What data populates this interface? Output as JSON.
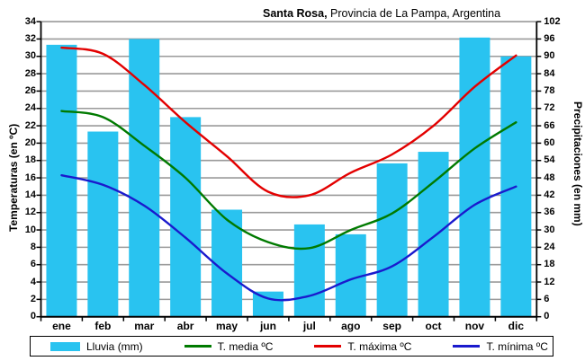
{
  "title": {
    "bold": "Santa Rosa,",
    "rest": " Provincia de La Pampa, Argentina"
  },
  "axes": {
    "left_label": "Temperaturas (en ºC)",
    "right_label": "Precipitaciones (en mm)",
    "left_ticks": [
      "34",
      "32",
      "30",
      "28",
      "26",
      "24",
      "22",
      "20",
      "18",
      "16",
      "14",
      "12",
      "10",
      "8",
      "6",
      "4",
      "2",
      "0"
    ],
    "right_ticks": [
      "102",
      "96",
      "90",
      "84",
      "78",
      "72",
      "66",
      "60",
      "54",
      "48",
      "42",
      "36",
      "30",
      "24",
      "18",
      "12",
      "6",
      "0"
    ]
  },
  "legend": [
    {
      "label": "Lluvia (mm)",
      "type": "bar",
      "color": "#29C3F0"
    },
    {
      "label": "T. media ºC",
      "type": "line",
      "color": "#007A00"
    },
    {
      "label": "T. máxima ºC",
      "type": "line",
      "color": "#E30000"
    },
    {
      "label": "T. mínima ºC",
      "type": "line",
      "color": "#1A1ACD"
    }
  ],
  "style": {
    "grid_color": "#9A9A9A",
    "axis_color": "#000000",
    "bar_color": "#29C3F0",
    "max_color": "#E30000",
    "media_color": "#007A00",
    "min_color": "#1A1ACD"
  },
  "chart_data": {
    "type": "bar+line",
    "title": "Santa Rosa, Provincia de La Pampa, Argentina",
    "categories": [
      "ene",
      "feb",
      "mar",
      "abr",
      "may",
      "jun",
      "jul",
      "ago",
      "sep",
      "oct",
      "nov",
      "dic"
    ],
    "ylabel_left": "Temperaturas (en ºC)",
    "ylabel_right": "Precipitaciones (en mm)",
    "ylim_left": [
      0,
      34
    ],
    "ylim_right": [
      0,
      102
    ],
    "grid": true,
    "legend_position": "bottom",
    "series": [
      {
        "name": "Lluvia (mm)",
        "type": "bar",
        "axis": "right",
        "unit": "mm",
        "values": [
          94,
          64,
          96,
          69,
          37,
          8.7,
          31.9,
          28.5,
          53,
          57,
          96.5,
          90
        ]
      },
      {
        "name": "T. máxima ºC",
        "type": "line",
        "axis": "left",
        "unit": "ºC",
        "values": [
          31.0,
          30.3,
          26.7,
          22.4,
          18.5,
          14.4,
          14.0,
          16.6,
          18.7,
          22.0,
          26.5,
          30.1
        ]
      },
      {
        "name": "T. media ºC",
        "type": "line",
        "axis": "left",
        "unit": "ºC",
        "values": [
          23.7,
          23.0,
          19.7,
          16.0,
          11.2,
          8.6,
          7.9,
          10.0,
          11.9,
          15.5,
          19.4,
          22.4
        ]
      },
      {
        "name": "T. mínima ºC",
        "type": "line",
        "axis": "left",
        "unit": "ºC",
        "values": [
          16.3,
          15.2,
          12.8,
          9.1,
          5.0,
          2.1,
          2.4,
          4.3,
          5.8,
          9.2,
          12.9,
          15.0
        ]
      }
    ]
  }
}
